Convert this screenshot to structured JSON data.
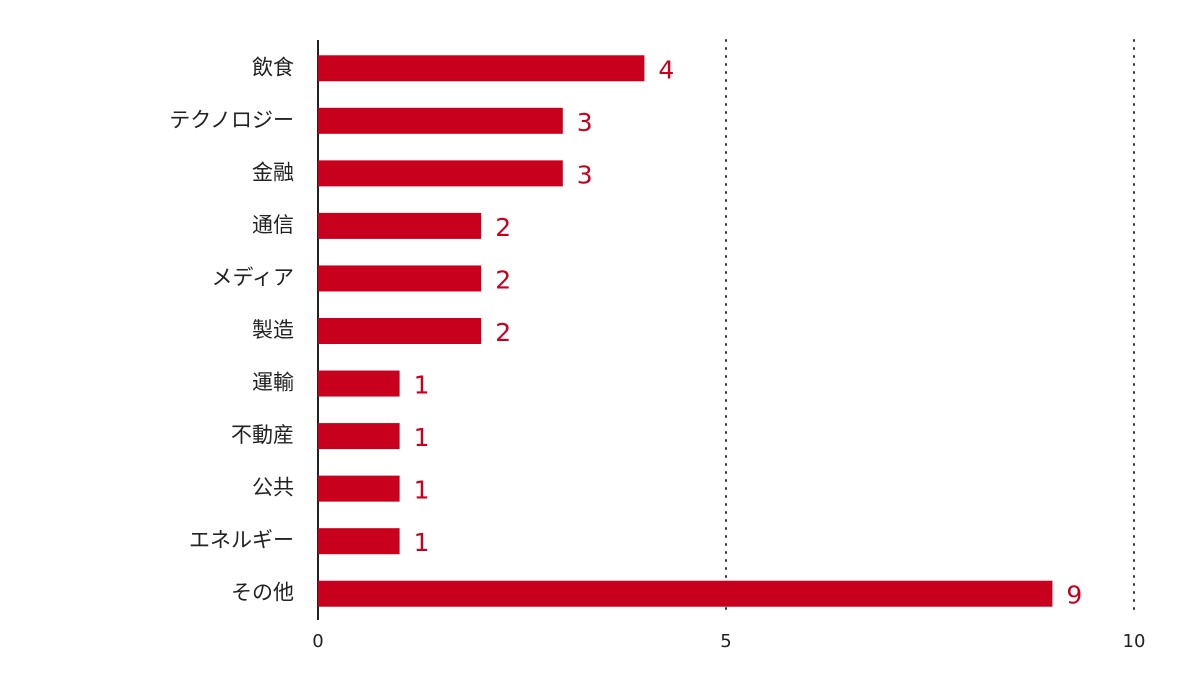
{
  "chart_data": {
    "type": "bar",
    "orientation": "horizontal",
    "categories": [
      "飲食",
      "テクノロジー",
      "金融",
      "通信",
      "メディア",
      "製造",
      "運輸",
      "不動産",
      "公共",
      "エネルギー",
      "その他"
    ],
    "values": [
      4,
      3,
      3,
      2,
      2,
      2,
      1,
      1,
      1,
      1,
      9
    ],
    "color": "#c8001e",
    "xlim": [
      0,
      10
    ],
    "xticks": [
      0,
      5,
      10
    ],
    "grid": true
  }
}
